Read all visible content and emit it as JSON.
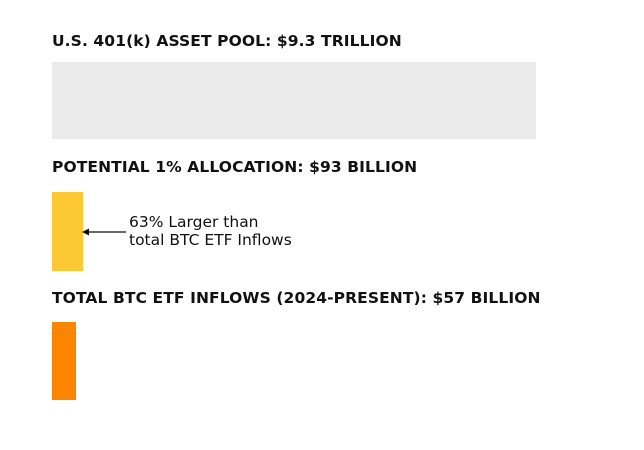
{
  "chart_data": {
    "type": "bar",
    "orientation": "horizontal",
    "units": "USD billion",
    "categories": [
      "U.S. 401(k) ASSET POOL: $9.3 TRILLION",
      "POTENTIAL 1% ALLOCATION: $93 BILLION",
      "TOTAL BTC ETF INFLOWS (2024-PRESENT): $57 BILLION"
    ],
    "values": [
      9300,
      93,
      57
    ],
    "annotation": {
      "line1": "63% Larger than",
      "line2": "total BTC ETF Inflows",
      "target": 1
    },
    "colors": [
      "#ebebeb",
      "#fcc934",
      "#fb8500"
    ],
    "grid": false,
    "legend": "none"
  }
}
